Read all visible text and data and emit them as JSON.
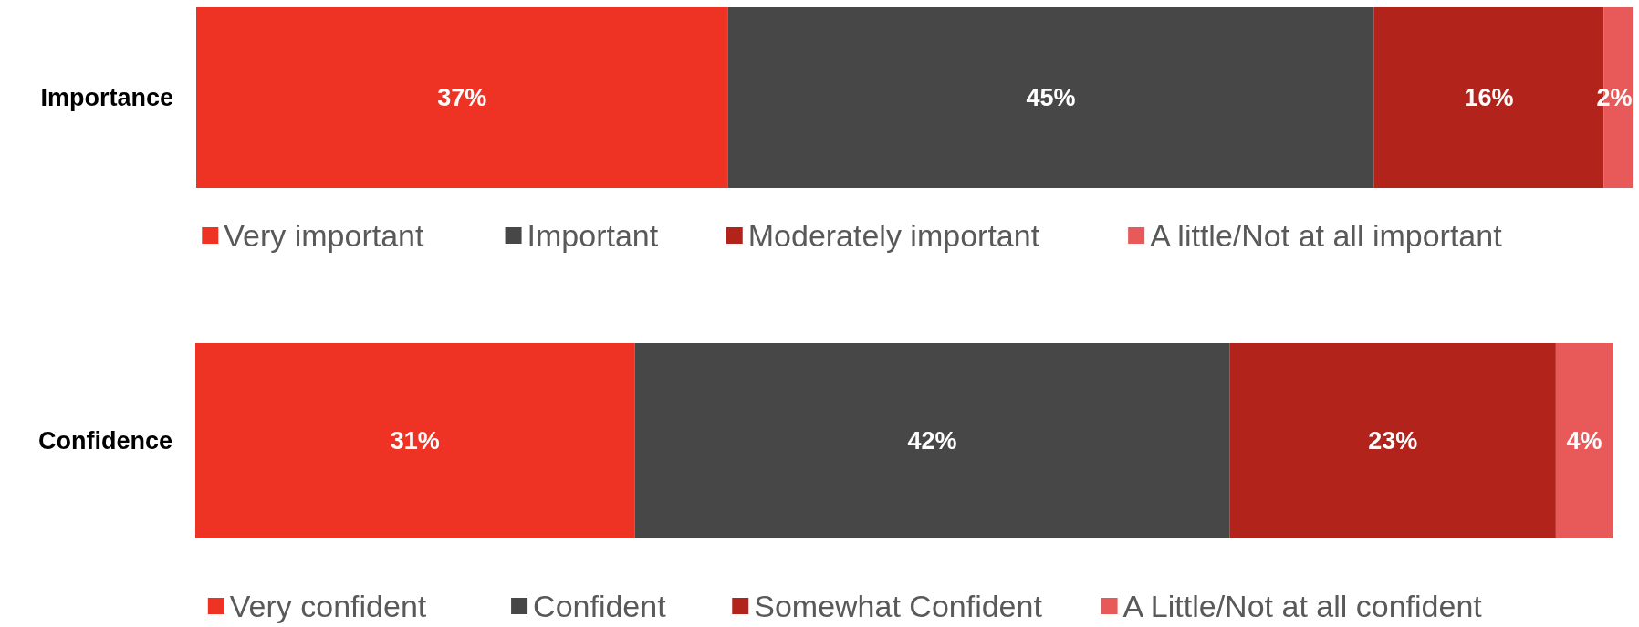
{
  "chart_data": [
    {
      "type": "bar",
      "orientation": "horizontal",
      "stacked": true,
      "categories": [
        "Importance"
      ],
      "xlim": [
        0,
        100
      ],
      "tick_labels": "y",
      "legend": "bottom",
      "series": [
        {
          "name": "Very important",
          "color": "#ee3325",
          "values": [
            37
          ],
          "value_labels": [
            "37%"
          ]
        },
        {
          "name": "Important",
          "color": "#474747",
          "values": [
            45
          ],
          "value_labels": [
            "45%"
          ]
        },
        {
          "name": "Moderately important",
          "color": "#b1231b",
          "values": [
            16
          ],
          "value_labels": [
            "16%"
          ]
        },
        {
          "name": "A little/Not at all important",
          "color": "#e85a5a",
          "values": [
            2
          ],
          "value_labels": [
            "2%"
          ]
        }
      ]
    },
    {
      "type": "bar",
      "orientation": "horizontal",
      "stacked": true,
      "categories": [
        "Confidence"
      ],
      "xlim": [
        0,
        100
      ],
      "tick_labels": "y",
      "legend": "bottom",
      "series": [
        {
          "name": "Very confident",
          "color": "#ee3325",
          "values": [
            31
          ],
          "value_labels": [
            "31%"
          ]
        },
        {
          "name": "Confident",
          "color": "#474747",
          "values": [
            42
          ],
          "value_labels": [
            "42%"
          ]
        },
        {
          "name": "Somewhat Confident",
          "color": "#b1231b",
          "values": [
            23
          ],
          "value_labels": [
            "23%"
          ]
        },
        {
          "name": "A Little/Not at all confident",
          "color": "#e85a5a",
          "values": [
            4
          ],
          "value_labels": [
            "4%"
          ]
        }
      ]
    }
  ]
}
